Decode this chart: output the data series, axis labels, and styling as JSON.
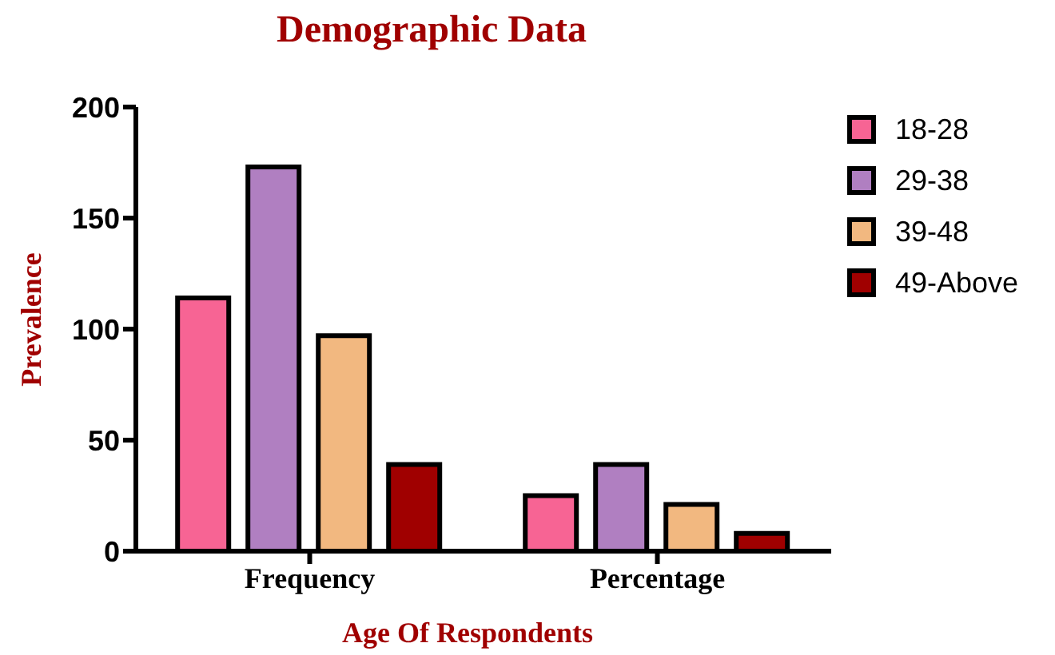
{
  "chart_data": {
    "type": "bar",
    "title": "Demographic Data",
    "xlabel": "Age Of Respondents",
    "ylabel": "Prevalence",
    "categories": [
      "Frequency",
      "Percentage"
    ],
    "series": [
      {
        "name": "18-28",
        "color": "#f76494",
        "values": [
          114,
          25
        ]
      },
      {
        "name": "29-38",
        "color": "#b07fc1",
        "values": [
          173,
          39
        ]
      },
      {
        "name": "39-48",
        "color": "#f2b880",
        "values": [
          97,
          21
        ]
      },
      {
        "name": "49-Above",
        "color": "#a00000",
        "values": [
          39,
          8
        ]
      }
    ],
    "ylim": [
      0,
      200
    ],
    "yticks": [
      0,
      50,
      100,
      150,
      200
    ],
    "grid": false,
    "legend": "right"
  }
}
